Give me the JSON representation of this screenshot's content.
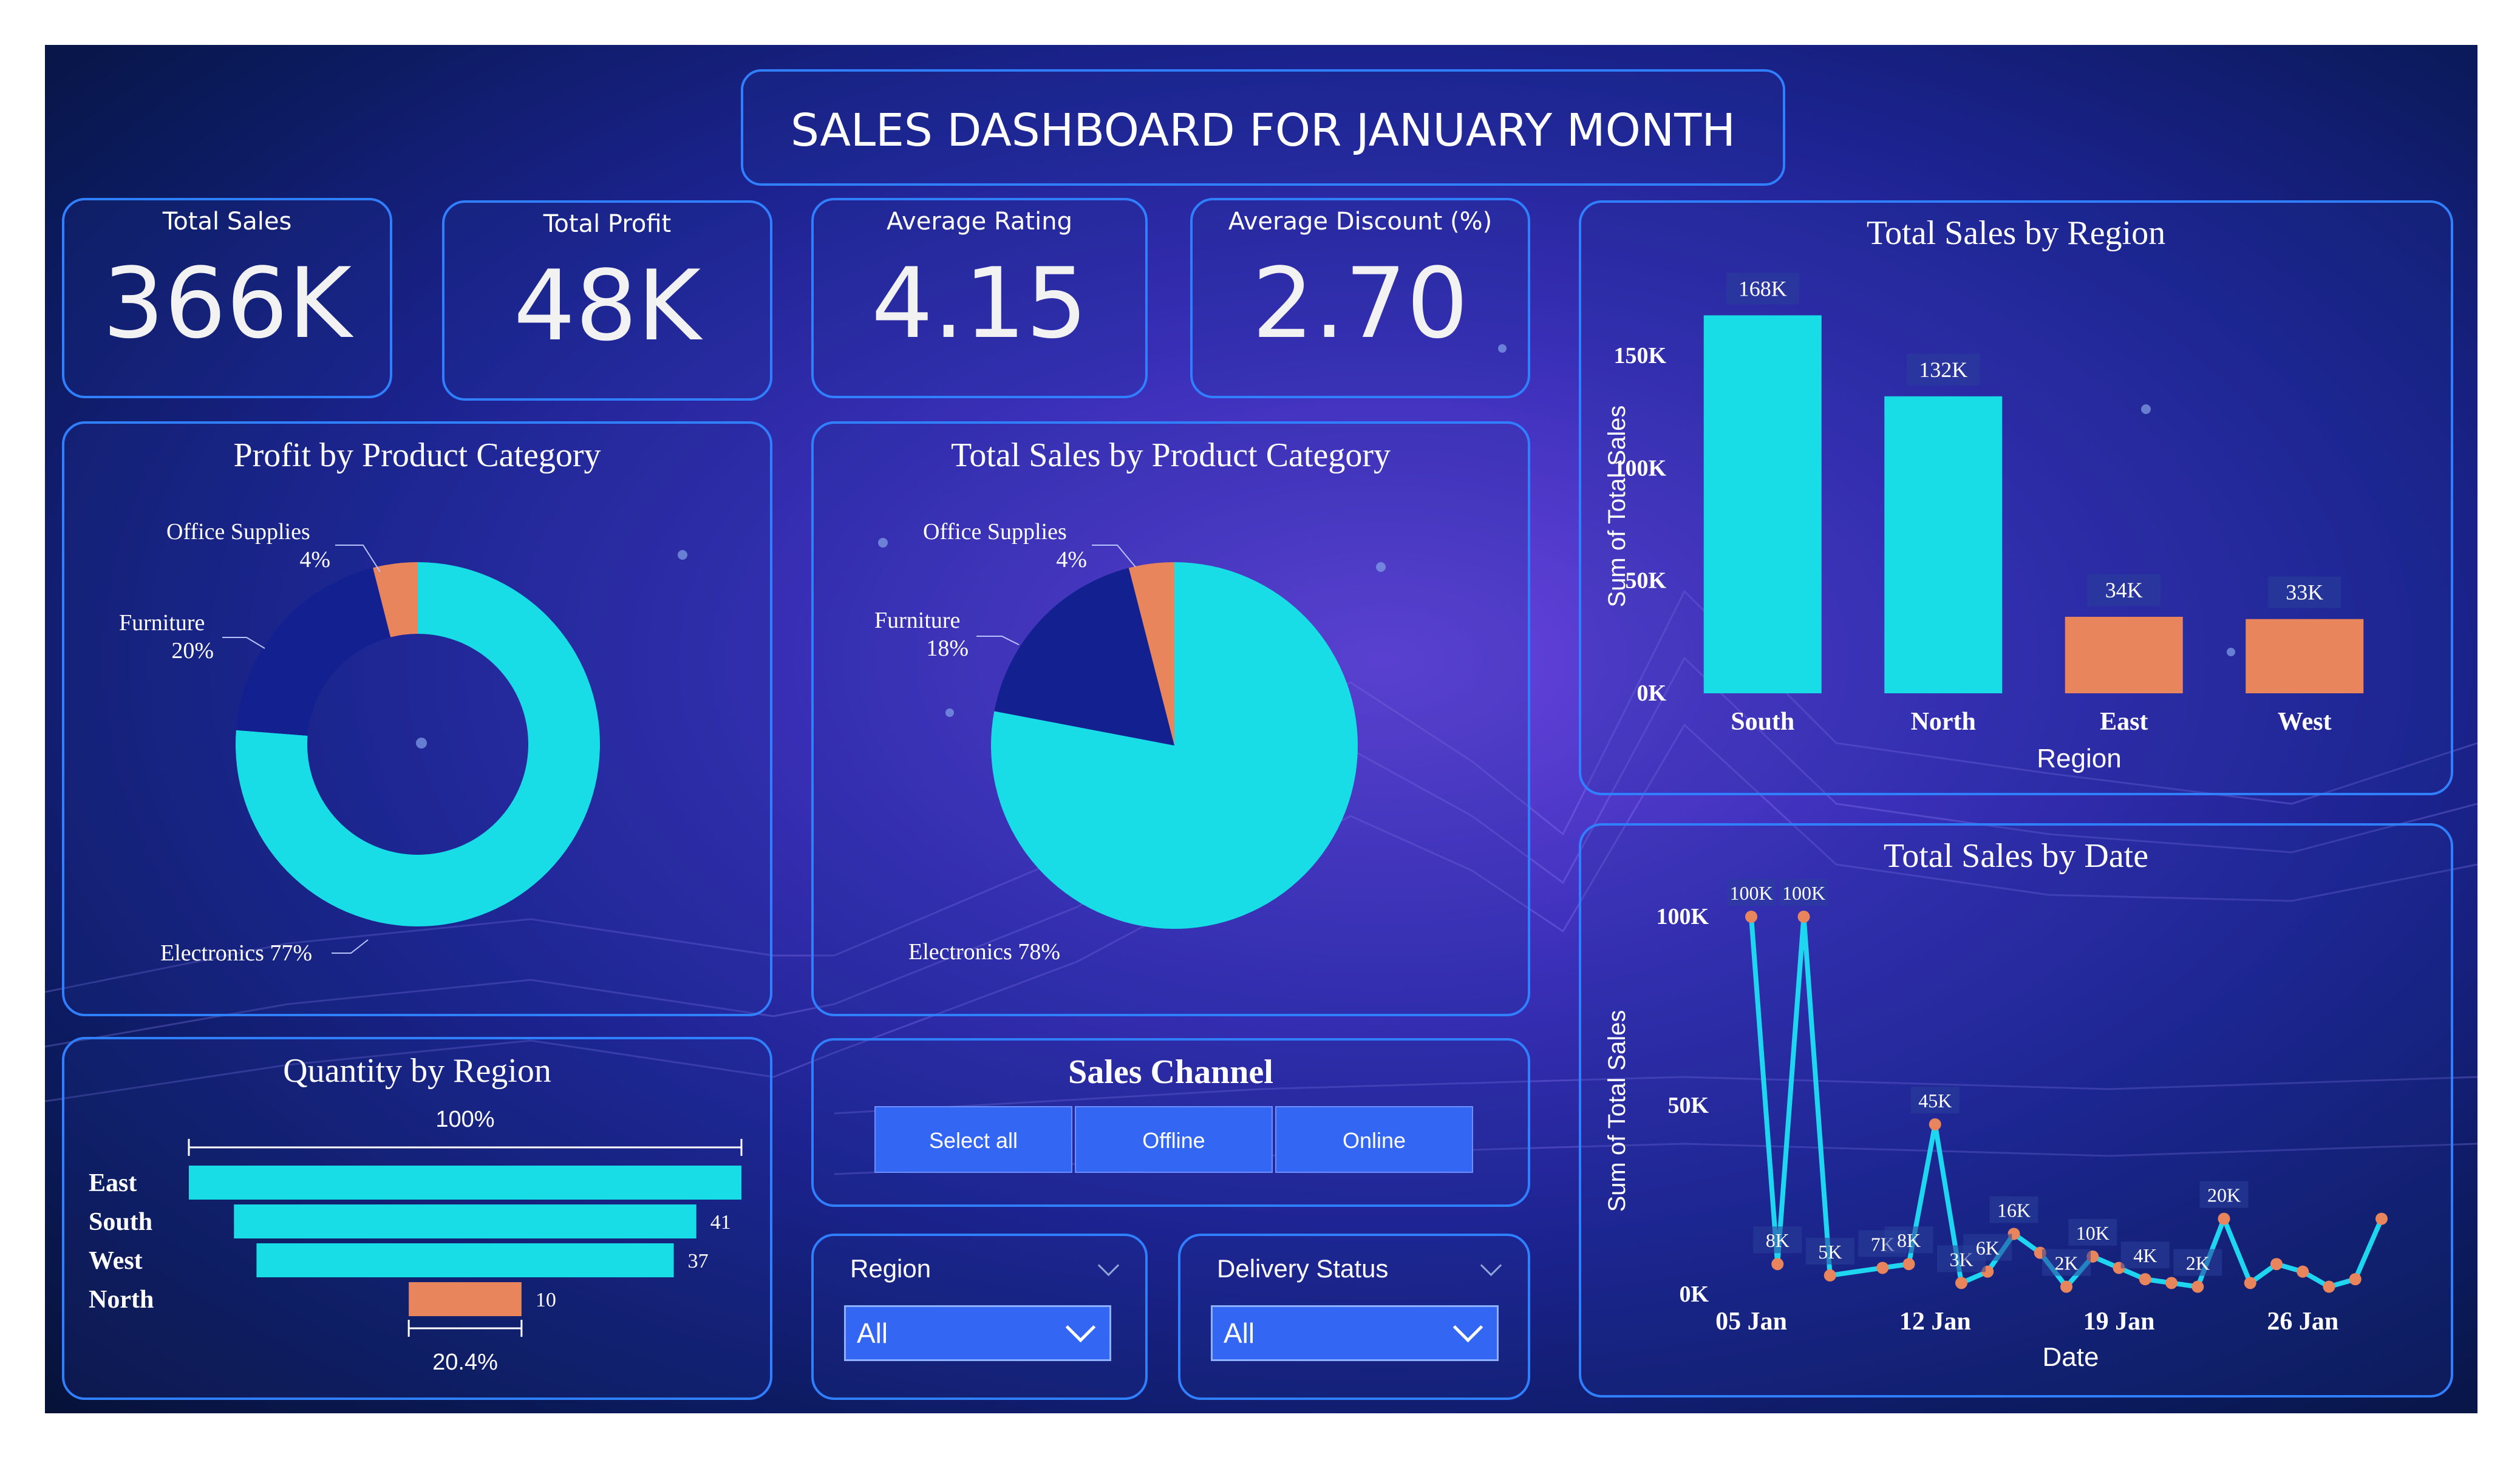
{
  "title": "SALES DASHBOARD FOR JANUARY MONTH",
  "kpis": [
    {
      "label": "Total Sales",
      "value": "366K"
    },
    {
      "label": "Total Profit",
      "value": "48K"
    },
    {
      "label": "Average Rating",
      "value": "4.15"
    },
    {
      "label": "Average Discount (%)",
      "value": "2.70"
    }
  ],
  "colors": {
    "cyan": "#18dce6",
    "navy": "#13208f",
    "orange": "#e8855c",
    "border": "#2f7fff",
    "button": "#3466f4"
  },
  "profit_chart": {
    "title": "Profit by Product Category",
    "slices": [
      {
        "name": "Electronics",
        "pct": 77,
        "label": "Electronics 77%",
        "color": "#18dce6"
      },
      {
        "name": "Furniture",
        "pct": 20,
        "label": "Furniture",
        "pct_label": "20%",
        "color": "#13208f"
      },
      {
        "name": "Office Supplies",
        "pct": 4,
        "label": "Office Supplies",
        "pct_label": "4%",
        "color": "#e8855c"
      }
    ]
  },
  "sales_category_chart": {
    "title": "Total Sales by Product Category",
    "slices": [
      {
        "name": "Electronics",
        "pct": 78,
        "label": "Electronics 78%",
        "color": "#18dce6"
      },
      {
        "name": "Furniture",
        "pct": 18,
        "label": "Furniture",
        "pct_label": "18%",
        "color": "#13208f"
      },
      {
        "name": "Office Supplies",
        "pct": 4,
        "label": "Office Supplies",
        "pct_label": "4%",
        "color": "#e8855c"
      }
    ]
  },
  "chart_data": [
    {
      "type": "bar",
      "title": "Total Sales by Region",
      "categories": [
        "South",
        "North",
        "East",
        "West"
      ],
      "values": [
        168,
        132,
        34,
        33
      ],
      "data_labels": [
        "168K",
        "132K",
        "34K",
        "33K"
      ],
      "colors": [
        "#18dce6",
        "#18dce6",
        "#e8855c",
        "#e8855c"
      ],
      "xlabel": "Region",
      "ylabel": "Sum of Total Sales",
      "yticks": [
        0,
        50,
        100,
        150
      ],
      "ytick_labels": [
        "0K",
        "50K",
        "100K",
        "150K"
      ],
      "ylim": [
        0,
        170
      ]
    },
    {
      "type": "line",
      "title": "Total Sales by Date",
      "xlabel": "Date",
      "ylabel": "Sum of Total Sales",
      "x_day": [
        5,
        6,
        7,
        8,
        10,
        11,
        12,
        13,
        14,
        15,
        16,
        17,
        18,
        19,
        20,
        21,
        22,
        23,
        24,
        25,
        26,
        27,
        28,
        29
      ],
      "values": [
        100,
        8,
        100,
        5,
        7,
        8,
        45,
        3,
        6,
        16,
        11,
        2,
        10,
        7,
        4,
        3,
        2,
        20,
        3,
        8,
        6,
        2,
        4,
        20
      ],
      "point_labels": [
        {
          "i": 0,
          "text": "100K"
        },
        {
          "i": 1,
          "text": "8K"
        },
        {
          "i": 2,
          "text": "100K"
        },
        {
          "i": 3,
          "text": "5K"
        },
        {
          "i": 4,
          "text": "7K"
        },
        {
          "i": 5,
          "text": "8K"
        },
        {
          "i": 6,
          "text": "45K"
        },
        {
          "i": 7,
          "text": "3K"
        },
        {
          "i": 8,
          "text": "6K"
        },
        {
          "i": 9,
          "text": "16K"
        },
        {
          "i": 11,
          "text": "2K"
        },
        {
          "i": 12,
          "text": "10K"
        },
        {
          "i": 14,
          "text": "4K"
        },
        {
          "i": 16,
          "text": "2K"
        },
        {
          "i": 17,
          "text": "20K"
        }
      ],
      "xticks": [
        5,
        12,
        19,
        26
      ],
      "xtick_labels": [
        "05 Jan",
        "12 Jan",
        "19 Jan",
        "26 Jan"
      ],
      "yticks": [
        0,
        50,
        100
      ],
      "ytick_labels": [
        "0K",
        "50K",
        "100K"
      ],
      "ylim": [
        0,
        100
      ],
      "xlim": [
        5,
        29
      ]
    },
    {
      "type": "bar",
      "title": "Quantity by Region",
      "categories": [
        "East",
        "South",
        "West",
        "North"
      ],
      "values": [
        49,
        41,
        37,
        10
      ],
      "data_labels": [
        "",
        "41",
        "37",
        "10"
      ],
      "colors": [
        "#18dce6",
        "#18dce6",
        "#18dce6",
        "#e8855c"
      ],
      "top_percent_label": "100%",
      "bottom_percent_label": "20.4%"
    }
  ],
  "sales_channel": {
    "title": "Sales Channel",
    "buttons": [
      "Select all",
      "Offline",
      "Online"
    ]
  },
  "region_slicer": {
    "label": "Region",
    "value": "All"
  },
  "delivery_slicer": {
    "label": "Delivery Status",
    "value": "All"
  }
}
